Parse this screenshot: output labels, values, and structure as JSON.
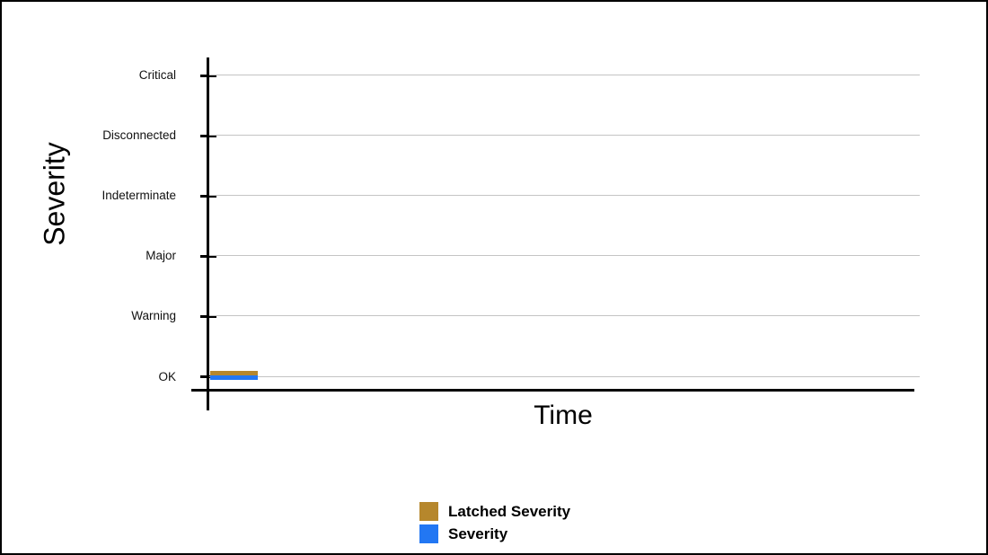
{
  "chart_data": {
    "type": "line",
    "title": "",
    "xlabel": "Time",
    "ylabel": "Severity",
    "y_categories": [
      "Critical",
      "Disconnected",
      "Indeterminate",
      "Major",
      "Warning",
      "OK"
    ],
    "x_tick_labels": [],
    "grid": "horizontal-only",
    "gridline_color": "#c4c4c4",
    "axis_color": "#000000",
    "legend_position": "bottom-center",
    "series": [
      {
        "name": "Latched Severity",
        "color": "#b6872c",
        "points": [
          {
            "x_frac_start": 0.0,
            "x_frac_end": 0.067,
            "value": "OK"
          }
        ]
      },
      {
        "name": "Severity",
        "color": "#2277f3",
        "points": [
          {
            "x_frac_start": 0.0,
            "x_frac_end": 0.067,
            "value": "OK"
          }
        ]
      }
    ]
  },
  "legend": {
    "items": [
      {
        "label": "Latched Severity",
        "color": "#b6872c"
      },
      {
        "label": "Severity",
        "color": "#2277f3"
      }
    ]
  }
}
